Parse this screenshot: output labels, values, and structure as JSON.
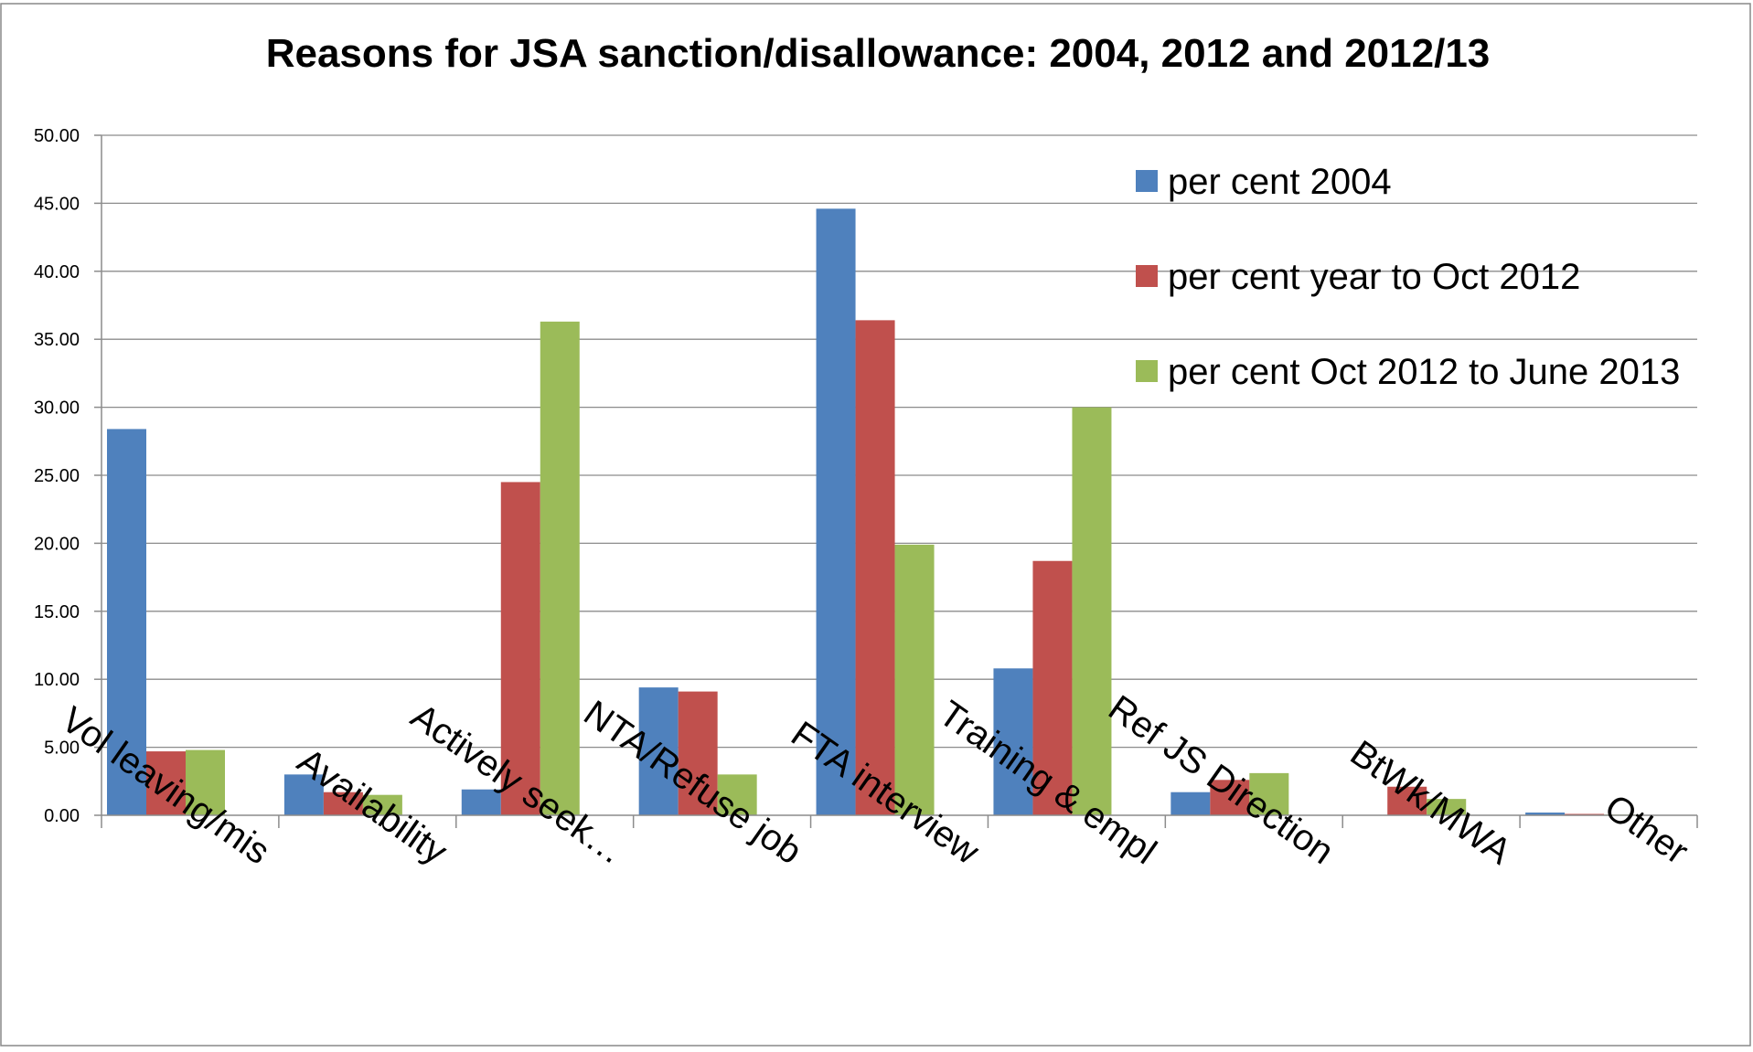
{
  "chart_data": {
    "type": "bar",
    "title": "Reasons for JSA sanction/disallowance: 2004, 2012 and 2012/13",
    "xlabel": "",
    "ylabel": "",
    "ylim": [
      0,
      50
    ],
    "y_ticks": [
      "0.00",
      "5.00",
      "10.00",
      "15.00",
      "20.00",
      "25.00",
      "30.00",
      "35.00",
      "40.00",
      "45.00",
      "50.00"
    ],
    "grid": true,
    "legend_position": "top-right",
    "categories": [
      "Vol leaving/mis",
      "Availability",
      "Actively seek…",
      "NTA/Refuse job",
      "FTA interview",
      "Training & empl",
      "Ref JS Direction",
      "BtWk/MWA",
      "Other"
    ],
    "series": [
      {
        "name": "per cent 2004",
        "color": "#4f81bd",
        "values": [
          28.4,
          3.0,
          1.9,
          9.4,
          44.6,
          10.8,
          1.7,
          0.0,
          0.2
        ]
      },
      {
        "name": "per cent year to Oct 2012",
        "color": "#c0504d",
        "values": [
          4.7,
          1.7,
          24.5,
          9.1,
          36.4,
          18.7,
          2.6,
          2.1,
          0.1
        ]
      },
      {
        "name": "per cent Oct 2012 to June 2013",
        "color": "#9bbb59",
        "values": [
          4.8,
          1.5,
          36.3,
          3.0,
          19.9,
          30.0,
          3.1,
          1.2,
          0.05
        ]
      }
    ]
  }
}
